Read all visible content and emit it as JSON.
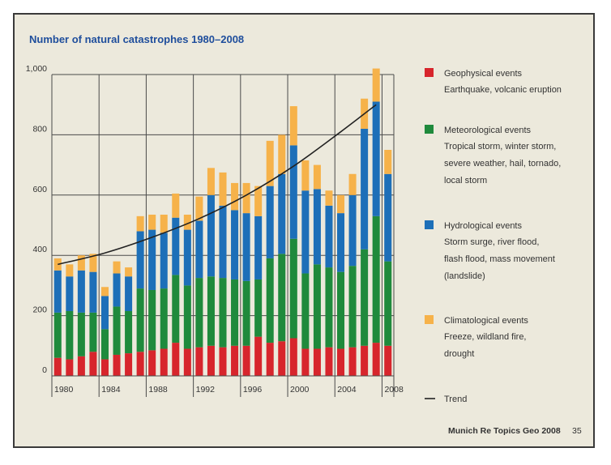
{
  "chart_data": {
    "type": "bar",
    "stacked": true,
    "title": "Number of natural catastrophes 1980–2008",
    "x": [
      1980,
      1981,
      1982,
      1983,
      1984,
      1985,
      1986,
      1987,
      1988,
      1989,
      1990,
      1991,
      1992,
      1993,
      1994,
      1995,
      1996,
      1997,
      1998,
      1999,
      2000,
      2001,
      2002,
      2003,
      2004,
      2005,
      2006,
      2007,
      2008
    ],
    "x_tick_labels": [
      "1980",
      "1984",
      "1988",
      "1992",
      "1996",
      "2000",
      "2004",
      "2008"
    ],
    "y_tick_labels": [
      "0",
      "200",
      "400",
      "600",
      "800",
      "1,000"
    ],
    "ylim": [
      0,
      1000
    ],
    "series": [
      {
        "name": "Geophysical events",
        "color": "#d7252c",
        "values": [
          60,
          55,
          65,
          80,
          55,
          70,
          75,
          80,
          85,
          90,
          110,
          90,
          95,
          100,
          95,
          100,
          100,
          130,
          110,
          115,
          125,
          90,
          90,
          95,
          90,
          95,
          100,
          110,
          100
        ]
      },
      {
        "name": "Meteorological events",
        "color": "#1f8a3c",
        "values": [
          150,
          160,
          145,
          130,
          100,
          160,
          140,
          210,
          200,
          200,
          225,
          210,
          230,
          230,
          230,
          220,
          215,
          190,
          280,
          290,
          330,
          250,
          280,
          265,
          255,
          270,
          320,
          420,
          280
        ]
      },
      {
        "name": "Hydrological events",
        "color": "#1d6fb8",
        "values": [
          140,
          115,
          140,
          135,
          110,
          110,
          115,
          190,
          200,
          185,
          190,
          185,
          190,
          270,
          240,
          230,
          225,
          210,
          240,
          265,
          310,
          275,
          250,
          205,
          195,
          235,
          400,
          380,
          290
        ]
      },
      {
        "name": "Climatological events",
        "color": "#f6b24a",
        "values": [
          40,
          40,
          50,
          60,
          30,
          40,
          30,
          50,
          50,
          60,
          80,
          50,
          80,
          90,
          110,
          90,
          100,
          100,
          150,
          130,
          130,
          100,
          80,
          50,
          60,
          70,
          100,
          110,
          80
        ]
      }
    ],
    "trend": {
      "name": "Trend",
      "color": "#222222",
      "x": [
        1980,
        1984,
        1988,
        1992,
        1996,
        2000,
        2004,
        2007
      ],
      "values": [
        370,
        408,
        460,
        522,
        600,
        696,
        810,
        900
      ]
    },
    "legend": [
      {
        "name": "Geophysical events",
        "desc": [
          "Earthquake, volcanic eruption"
        ]
      },
      {
        "name": "Meteorological events",
        "desc": [
          "Tropical storm, winter storm,",
          "severe weather, hail, tornado,",
          "local storm"
        ]
      },
      {
        "name": "Hydrological events",
        "desc": [
          "Storm surge, river flood,",
          "flash flood, mass movement",
          "(landslide)"
        ]
      },
      {
        "name": "Climatological events",
        "desc": [
          "Freeze, wildland fire,",
          "drought"
        ]
      },
      {
        "name": "Trend",
        "desc": []
      }
    ],
    "legend_placement": "right",
    "grid": true
  },
  "footer": {
    "source": "Munich Re Topics Geo 2008",
    "page": "35"
  }
}
